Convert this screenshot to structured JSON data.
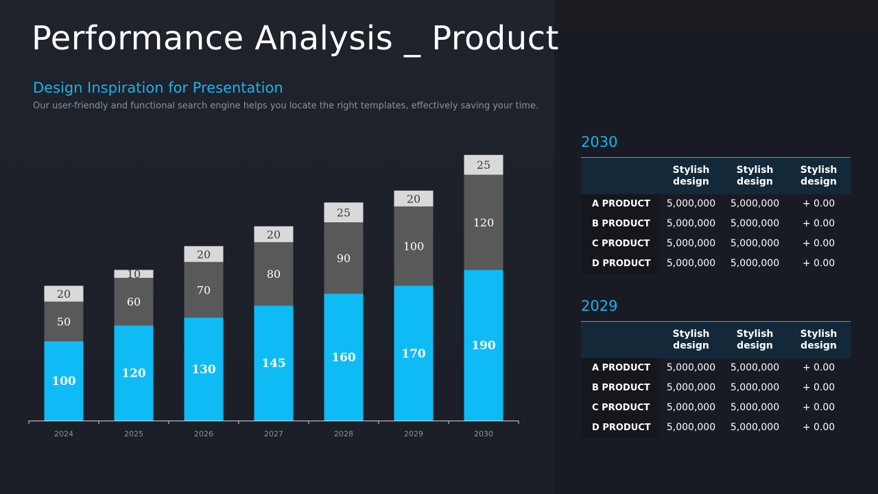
{
  "title": "Performance Analysis _ Product",
  "subtitle": "Design Inspiration for Presentation",
  "description": "Our user-friendly and functional search engine helps you locate the right templates, effectively saving your time.",
  "colors": {
    "accent": "#1fb1ec",
    "series_base": "#0fbbf5",
    "series_mid": "#595959",
    "series_top": "#d9d9d9"
  },
  "chart_data": {
    "type": "bar",
    "stacked": true,
    "categories": [
      "2024",
      "2025",
      "2026",
      "2027",
      "2028",
      "2029",
      "2030"
    ],
    "series": [
      {
        "values": [
          100,
          120,
          130,
          145,
          160,
          170,
          190
        ],
        "color": "#0fbbf5"
      },
      {
        "values": [
          50,
          60,
          70,
          80,
          90,
          100,
          120
        ],
        "color": "#595959"
      },
      {
        "values": [
          20,
          10,
          20,
          20,
          25,
          20,
          25
        ],
        "color": "#d9d9d9"
      }
    ],
    "ylim": [
      0,
      340
    ],
    "grid": false,
    "legend": "none"
  },
  "tables": [
    {
      "year": "2030",
      "headers": [
        "Stylish design",
        "Stylish design",
        "Stylish design"
      ],
      "rows": [
        {
          "label": "A PRODUCT",
          "values": [
            "5,000,000",
            "5,000,000",
            "+ 0.00"
          ]
        },
        {
          "label": "B PRODUCT",
          "values": [
            "5,000,000",
            "5,000,000",
            "+ 0.00"
          ]
        },
        {
          "label": "C PRODUCT",
          "values": [
            "5,000,000",
            "5,000,000",
            "+ 0.00"
          ]
        },
        {
          "label": "D PRODUCT",
          "values": [
            "5,000,000",
            "5,000,000",
            "+ 0.00"
          ]
        }
      ]
    },
    {
      "year": "2029",
      "headers": [
        "Stylish design",
        "Stylish design",
        "Stylish design"
      ],
      "rows": [
        {
          "label": "A PRODUCT",
          "values": [
            "5,000,000",
            "5,000,000",
            "+ 0.00"
          ]
        },
        {
          "label": "B PRODUCT",
          "values": [
            "5,000,000",
            "5,000,000",
            "+ 0.00"
          ]
        },
        {
          "label": "C PRODUCT",
          "values": [
            "5,000,000",
            "5,000,000",
            "+ 0.00"
          ]
        },
        {
          "label": "D PRODUCT",
          "values": [
            "5,000,000",
            "5,000,000",
            "+ 0.00"
          ]
        }
      ]
    }
  ]
}
